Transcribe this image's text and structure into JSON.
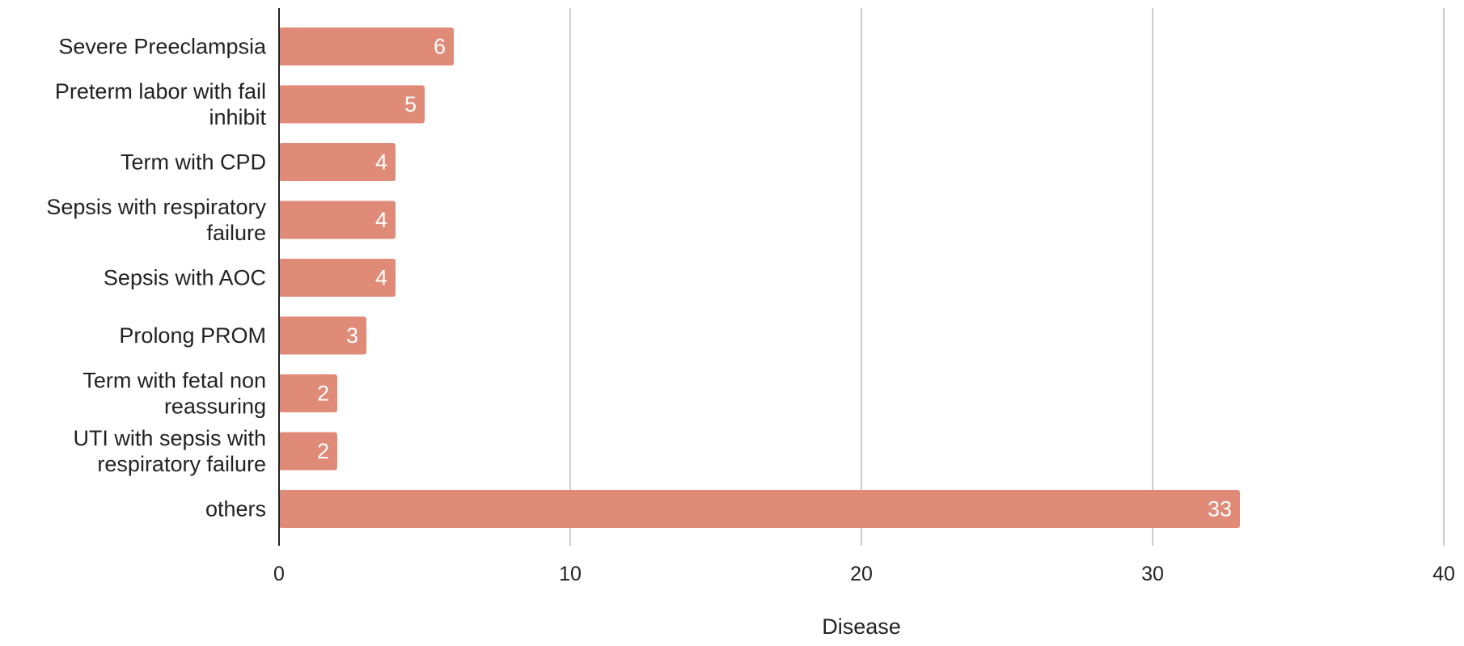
{
  "chart_data": {
    "type": "bar",
    "orientation": "horizontal",
    "categories": [
      "Severe Preeclampsia",
      "Preterm labor with fail inhibit",
      "Term with CPD",
      "Sepsis with respiratory failure",
      "Sepsis with AOC",
      "Prolong PROM",
      "Term with fetal non reassuring",
      "UTI with sepsis with respiratory failure",
      "others"
    ],
    "category_label_lines": [
      [
        "Severe Preeclampsia"
      ],
      [
        "Preterm labor with fail",
        "inhibit"
      ],
      [
        "Term with CPD"
      ],
      [
        "Sepsis with respiratory",
        "failure"
      ],
      [
        "Sepsis with AOC"
      ],
      [
        "Prolong PROM"
      ],
      [
        "Term with fetal non",
        "reassuring"
      ],
      [
        "UTI with sepsis with",
        "respiratory failure"
      ],
      [
        "others"
      ]
    ],
    "values": [
      6,
      5,
      4,
      4,
      4,
      3,
      2,
      2,
      33
    ],
    "data_labels": [
      "6",
      "5",
      "4",
      "4",
      "4",
      "3",
      "2",
      "2",
      "33"
    ],
    "xlim": [
      0,
      40
    ],
    "x_ticks": [
      "0",
      "10",
      "20",
      "30",
      "40"
    ],
    "x_tick_values": [
      0,
      10,
      20,
      30,
      40
    ],
    "xlabel": "Disease",
    "ylabel": "",
    "title": "",
    "grid": "vertical",
    "legend": "none",
    "colors": {
      "bar": "#e08a78",
      "grid": "#cccccc",
      "axis": "#222222",
      "data_label": "#ffffff"
    }
  }
}
